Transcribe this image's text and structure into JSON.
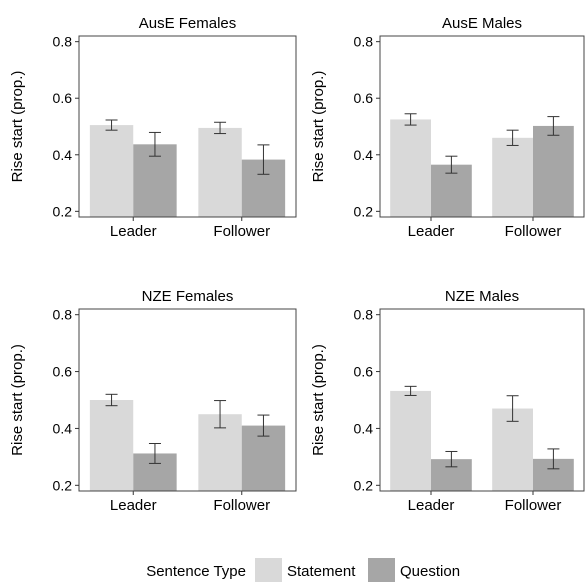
{
  "chart_data": [
    {
      "type": "bar",
      "title": "AusE Females",
      "ylabel": "Rise start (prop.)",
      "categories": [
        "Leader",
        "Follower"
      ],
      "ylim": [
        0.18,
        0.82
      ],
      "yticks": [
        "0.2",
        "0.4",
        "0.6",
        "0.8"
      ],
      "series": [
        {
          "name": "Statement",
          "values": [
            0.505,
            0.495
          ],
          "errors": [
            0.018,
            0.02
          ]
        },
        {
          "name": "Question",
          "values": [
            0.437,
            0.383
          ],
          "errors": [
            0.042,
            0.052
          ]
        }
      ]
    },
    {
      "type": "bar",
      "title": "AusE Males",
      "ylabel": "Rise start (prop.)",
      "categories": [
        "Leader",
        "Follower"
      ],
      "ylim": [
        0.18,
        0.82
      ],
      "yticks": [
        "0.2",
        "0.4",
        "0.6",
        "0.8"
      ],
      "series": [
        {
          "name": "Statement",
          "values": [
            0.525,
            0.46
          ],
          "errors": [
            0.02,
            0.027
          ]
        },
        {
          "name": "Question",
          "values": [
            0.365,
            0.502
          ],
          "errors": [
            0.03,
            0.033
          ]
        }
      ]
    },
    {
      "type": "bar",
      "title": "NZE Females",
      "ylabel": "Rise start (prop.)",
      "categories": [
        "Leader",
        "Follower"
      ],
      "ylim": [
        0.18,
        0.82
      ],
      "yticks": [
        "0.2",
        "0.4",
        "0.6",
        "0.8"
      ],
      "series": [
        {
          "name": "Statement",
          "values": [
            0.5,
            0.45
          ],
          "errors": [
            0.02,
            0.048
          ]
        },
        {
          "name": "Question",
          "values": [
            0.312,
            0.41
          ],
          "errors": [
            0.035,
            0.037
          ]
        }
      ]
    },
    {
      "type": "bar",
      "title": "NZE Males",
      "ylabel": "Rise start (prop.)",
      "categories": [
        "Leader",
        "Follower"
      ],
      "ylim": [
        0.18,
        0.82
      ],
      "yticks": [
        "0.2",
        "0.4",
        "0.6",
        "0.8"
      ],
      "series": [
        {
          "name": "Statement",
          "values": [
            0.532,
            0.47
          ],
          "errors": [
            0.016,
            0.045
          ]
        },
        {
          "name": "Question",
          "values": [
            0.292,
            0.293
          ],
          "errors": [
            0.027,
            0.035
          ]
        }
      ]
    }
  ],
  "legend": {
    "title": "Sentence Type",
    "items": [
      {
        "label": "Statement",
        "color": "#d9d9d9"
      },
      {
        "label": "Question",
        "color": "#a6a6a6"
      }
    ],
    "placement": "bottom"
  }
}
